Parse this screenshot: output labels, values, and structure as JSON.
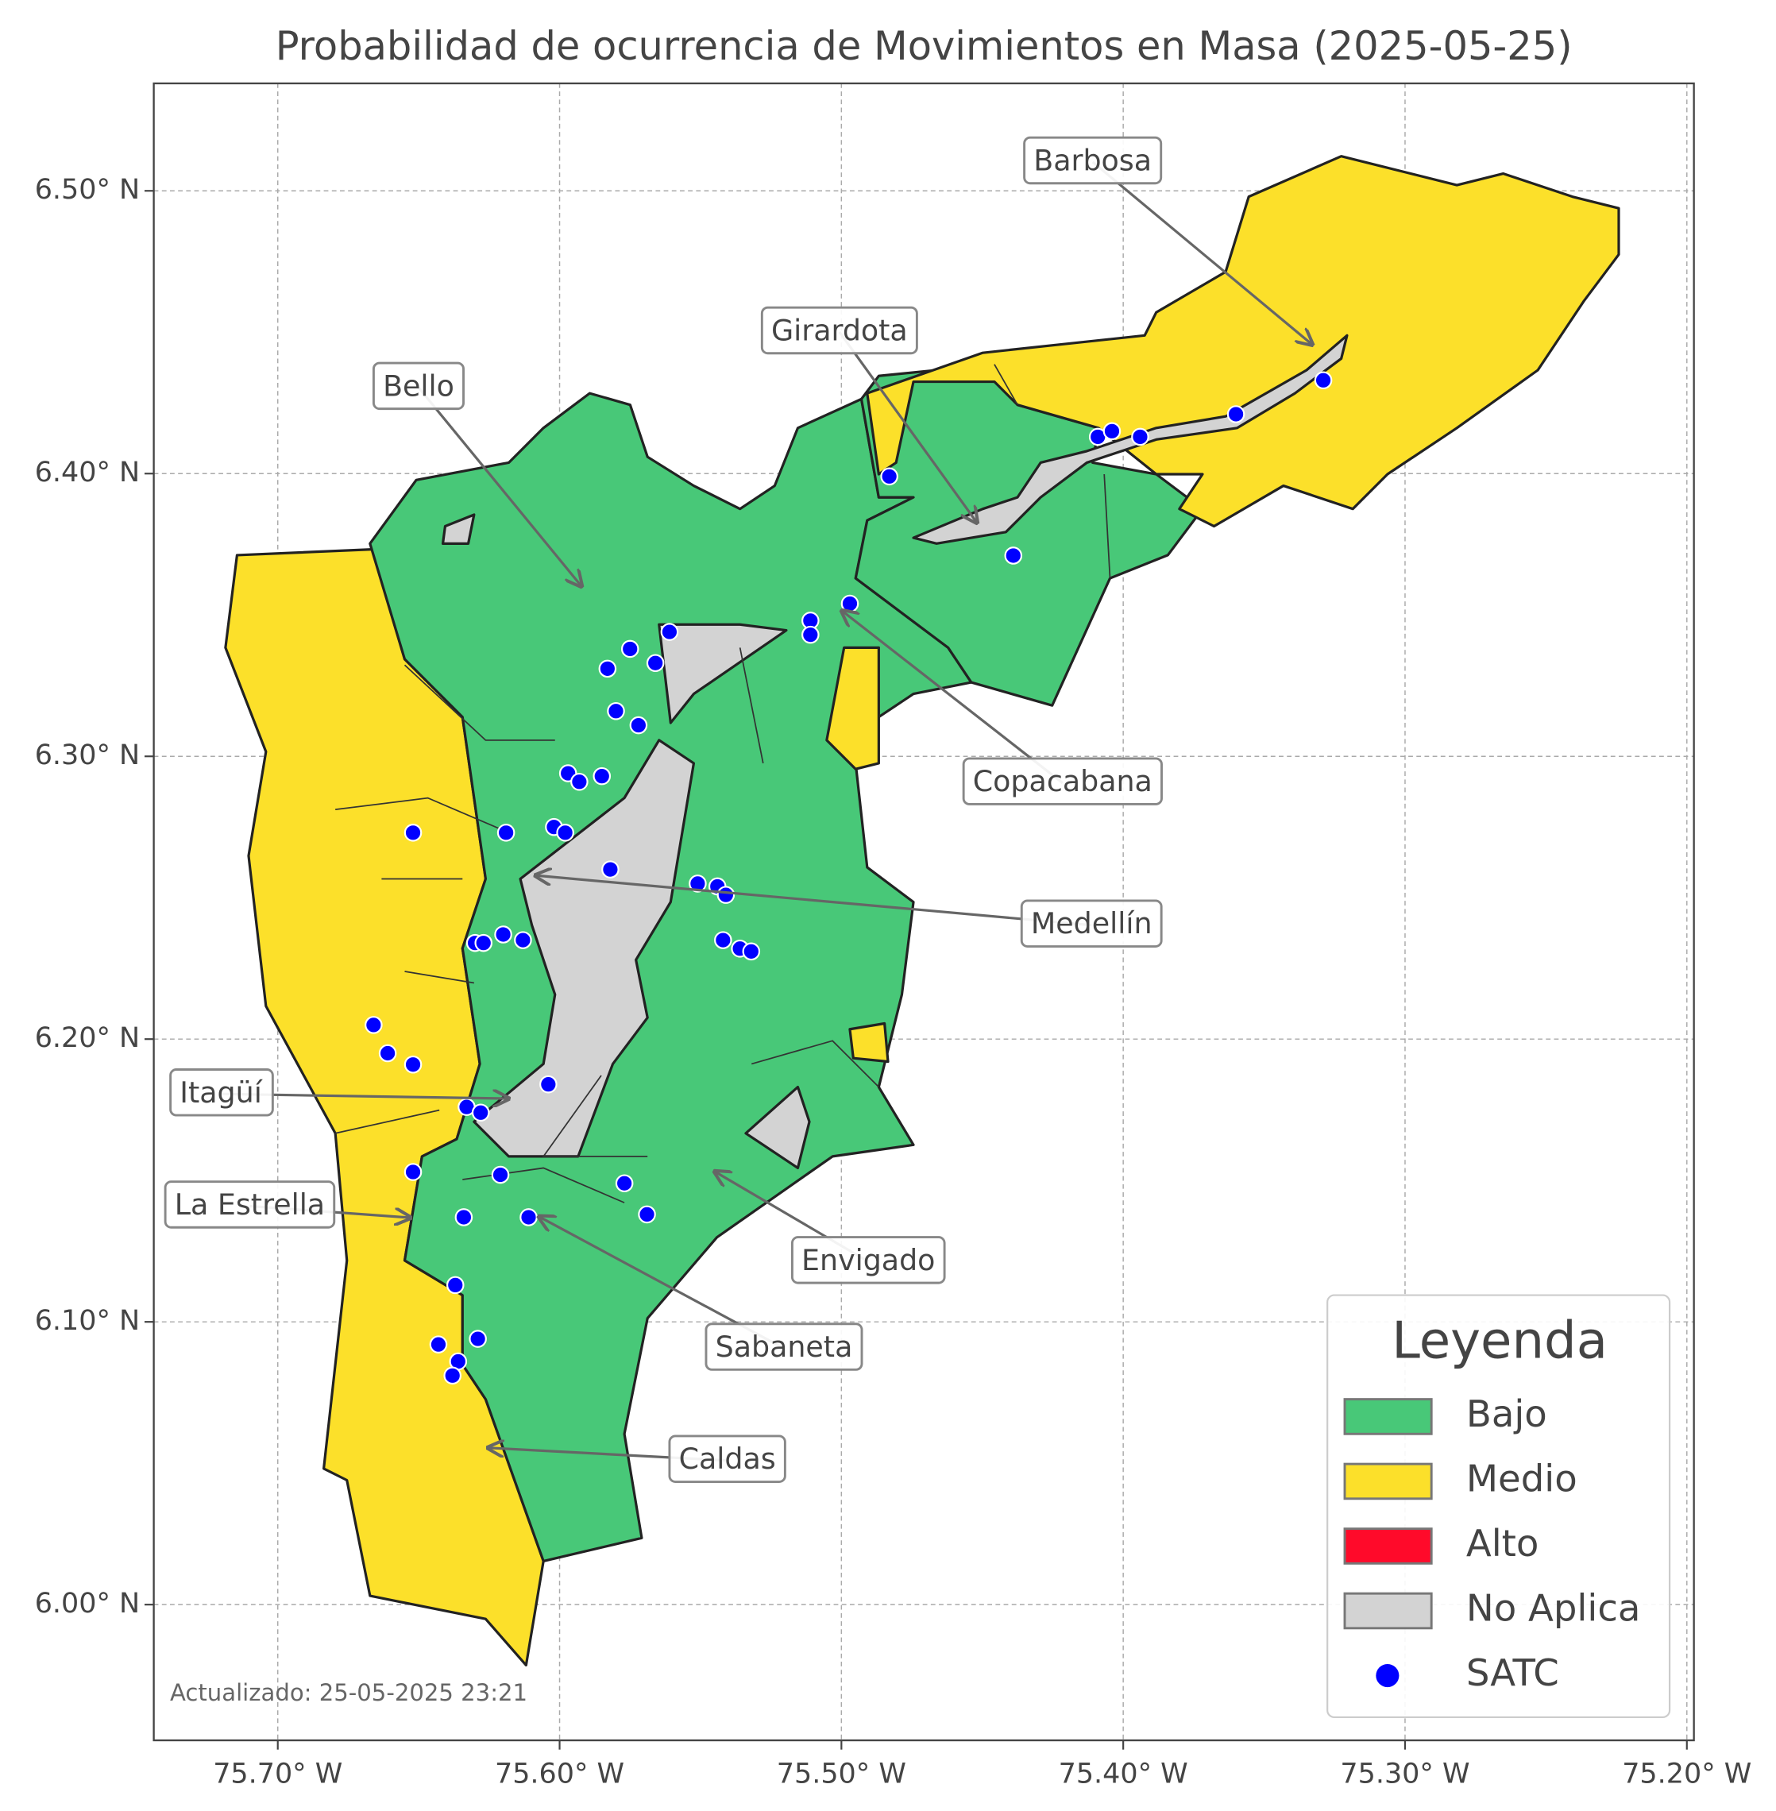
{
  "chart_data": {
    "type": "map",
    "title": "Probabilidad de ocurrencia de Movimientos en Masa (2025-05-25)",
    "footer": "Actualizado: 25-05-2025 23:21",
    "xlim": [
      -75.744,
      -75.1975
    ],
    "ylim": [
      5.952,
      6.538
    ],
    "xticks": [
      {
        "value": -75.7,
        "label": "75.70° W"
      },
      {
        "value": -75.6,
        "label": "75.60° W"
      },
      {
        "value": -75.5,
        "label": "75.50° W"
      },
      {
        "value": -75.4,
        "label": "75.40° W"
      },
      {
        "value": -75.3,
        "label": "75.30° W"
      },
      {
        "value": -75.2,
        "label": "75.20° W"
      }
    ],
    "yticks": [
      {
        "value": 6.0,
        "label": "6.00° N"
      },
      {
        "value": 6.1,
        "label": "6.10° N"
      },
      {
        "value": 6.2,
        "label": "6.20° N"
      },
      {
        "value": 6.3,
        "label": "6.30° N"
      },
      {
        "value": 6.4,
        "label": "6.40° N"
      },
      {
        "value": 6.5,
        "label": "6.50° N"
      }
    ],
    "grid": true,
    "legend": {
      "title": "Leyenda",
      "position": "lower right",
      "items": [
        {
          "name": "Bajo",
          "color": "#48c878"
        },
        {
          "name": "Medio",
          "color": "#fce02a"
        },
        {
          "name": "Alto",
          "color": "#ff0a2a"
        },
        {
          "name": "No Aplica",
          "color": "#d3d3d3"
        }
      ]
    },
    "annotations": [
      "Barbosa",
      "Girardota",
      "Bello",
      "Copacabana",
      "Medellín",
      "Itagüí",
      "La Estrella",
      "Envigado",
      "Sabaneta",
      "Caldas"
    ],
    "series": [
      {
        "name": "SATC",
        "color": "#0000ff",
        "x": [
          -75.483,
          -75.409,
          -75.404,
          -75.394,
          -75.36,
          -75.329,
          -75.439,
          -75.497,
          -75.511,
          -75.511,
          -75.561,
          -75.575,
          -75.583,
          -75.566,
          -75.58,
          -75.572,
          -75.597,
          -75.593,
          -75.585,
          -75.619,
          -75.652,
          -75.602,
          -75.598,
          -75.582,
          -75.551,
          -75.544,
          -75.541,
          -75.542,
          -75.536,
          -75.532,
          -75.62,
          -75.613,
          -75.63,
          -75.627,
          -75.666,
          -75.661,
          -75.652,
          -75.604,
          -75.633,
          -75.628,
          -75.652,
          -75.621,
          -75.577,
          -75.569,
          -75.634,
          -75.611,
          -75.637,
          -75.643,
          -75.629,
          -75.636,
          -75.638
        ],
        "y": [
          6.399,
          6.413,
          6.415,
          6.413,
          6.421,
          6.433,
          6.371,
          6.354,
          6.348,
          6.343,
          6.344,
          6.338,
          6.331,
          6.333,
          6.316,
          6.311,
          6.294,
          6.291,
          6.293,
          6.273,
          6.273,
          6.275,
          6.273,
          6.26,
          6.255,
          6.254,
          6.251,
          6.235,
          6.232,
          6.231,
          6.237,
          6.235,
          6.234,
          6.234,
          6.205,
          6.195,
          6.191,
          6.184,
          6.176,
          6.174,
          6.153,
          6.152,
          6.149,
          6.138,
          6.137,
          6.137,
          6.113,
          6.092,
          6.094,
          6.086,
          6.081
        ]
      }
    ]
  }
}
